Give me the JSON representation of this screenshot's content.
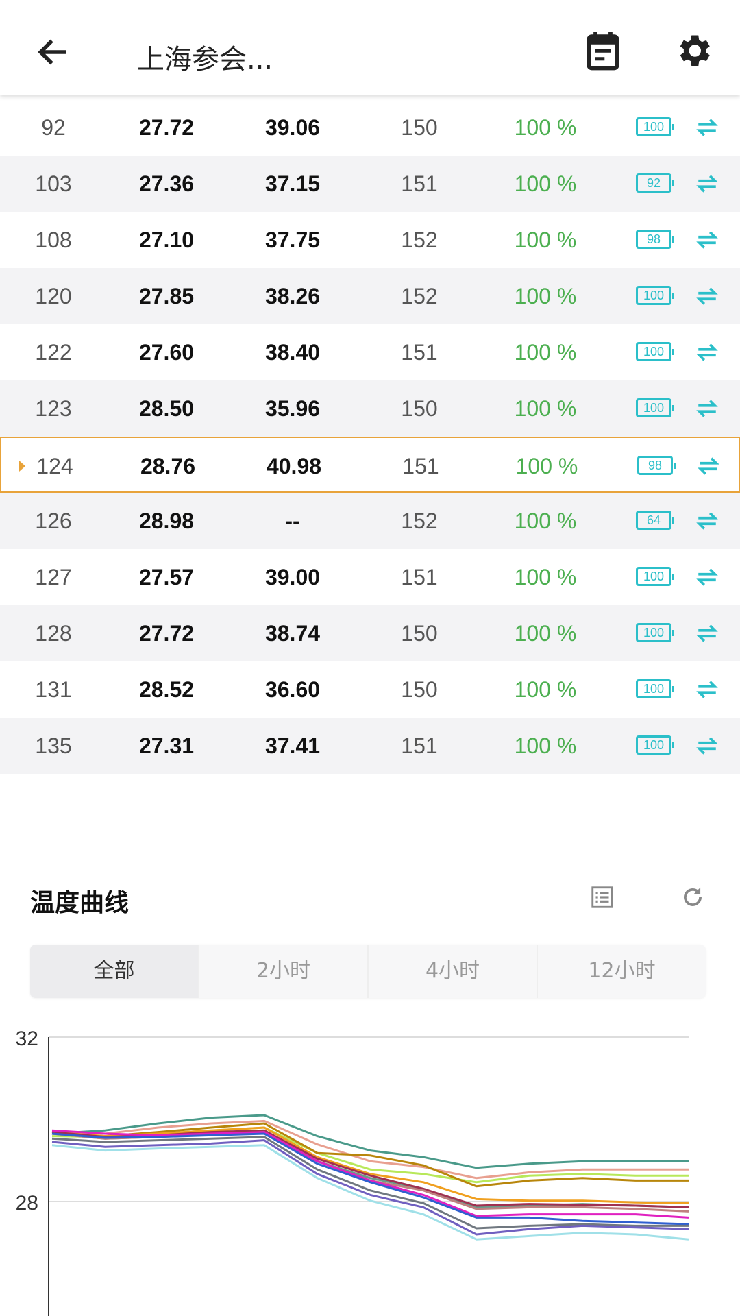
{
  "header": {
    "title": "上海参会...",
    "back_icon": "arrow-left-icon",
    "calendar_icon": "calendar-note-icon",
    "settings_icon": "gear-icon"
  },
  "colors": {
    "accent": "#2bbfc9",
    "green": "#4caf50",
    "selected_border": "#e8a33a"
  },
  "table": {
    "selected_id": "124",
    "rows": [
      {
        "id": "92",
        "temp": "27.72",
        "humidity": "39.06",
        "value": "150",
        "signal": "100 %",
        "battery": "100"
      },
      {
        "id": "103",
        "temp": "27.36",
        "humidity": "37.15",
        "value": "151",
        "signal": "100 %",
        "battery": "92"
      },
      {
        "id": "108",
        "temp": "27.10",
        "humidity": "37.75",
        "value": "152",
        "signal": "100 %",
        "battery": "98"
      },
      {
        "id": "120",
        "temp": "27.85",
        "humidity": "38.26",
        "value": "152",
        "signal": "100 %",
        "battery": "100"
      },
      {
        "id": "122",
        "temp": "27.60",
        "humidity": "38.40",
        "value": "151",
        "signal": "100 %",
        "battery": "100"
      },
      {
        "id": "123",
        "temp": "28.50",
        "humidity": "35.96",
        "value": "150",
        "signal": "100 %",
        "battery": "100"
      },
      {
        "id": "124",
        "temp": "28.76",
        "humidity": "40.98",
        "value": "151",
        "signal": "100 %",
        "battery": "98"
      },
      {
        "id": "126",
        "temp": "28.98",
        "humidity": "--",
        "value": "152",
        "signal": "100 %",
        "battery": "64"
      },
      {
        "id": "127",
        "temp": "27.57",
        "humidity": "39.00",
        "value": "151",
        "signal": "100 %",
        "battery": "100"
      },
      {
        "id": "128",
        "temp": "27.72",
        "humidity": "38.74",
        "value": "150",
        "signal": "100 %",
        "battery": "100"
      },
      {
        "id": "131",
        "temp": "28.52",
        "humidity": "36.60",
        "value": "150",
        "signal": "100 %",
        "battery": "100"
      },
      {
        "id": "135",
        "temp": "27.31",
        "humidity": "37.41",
        "value": "151",
        "signal": "100 %",
        "battery": "100"
      }
    ]
  },
  "curve": {
    "title": "温度曲线",
    "list_icon": "list-icon",
    "refresh_icon": "refresh-icon",
    "tabs": [
      "全部",
      "2小时",
      "4小时",
      "12小时"
    ],
    "active_tab": "全部"
  },
  "chart_data": {
    "type": "line",
    "title": "",
    "xlabel": "",
    "ylabel": "",
    "ylim": [
      24,
      32
    ],
    "yticks": [
      "32",
      "28"
    ],
    "grid": true,
    "x": [
      0,
      1,
      2,
      3,
      4,
      5,
      6,
      7,
      8,
      9,
      10,
      11,
      12
    ],
    "series": [
      {
        "color": "#4a9a8a",
        "values": [
          29.65,
          29.73,
          29.9,
          30.04,
          30.1,
          29.59,
          29.24,
          29.08,
          28.82,
          28.92,
          28.98,
          28.98,
          28.98
        ]
      },
      {
        "color": "#e8a090",
        "values": [
          29.69,
          29.65,
          29.8,
          29.9,
          29.96,
          29.39,
          28.98,
          28.84,
          28.57,
          28.71,
          28.78,
          28.78,
          28.78
        ]
      },
      {
        "color": "#b8e85a",
        "values": [
          29.59,
          29.57,
          29.65,
          29.73,
          29.8,
          29.18,
          28.78,
          28.67,
          28.47,
          28.63,
          28.67,
          28.63,
          28.63
        ]
      },
      {
        "color": "#b8860b",
        "values": [
          29.65,
          29.59,
          29.69,
          29.8,
          29.9,
          29.18,
          29.12,
          28.88,
          28.37,
          28.51,
          28.57,
          28.51,
          28.51
        ]
      },
      {
        "color": "#f0a020",
        "values": [
          29.69,
          29.59,
          29.65,
          29.73,
          29.8,
          29.08,
          28.67,
          28.47,
          28.06,
          28.02,
          28.02,
          27.98,
          27.96
        ]
      },
      {
        "color": "#6a9a8a",
        "values": [
          29.65,
          29.53,
          29.57,
          29.65,
          29.69,
          28.98,
          28.57,
          28.31,
          27.86,
          27.9,
          27.94,
          27.9,
          27.86
        ]
      },
      {
        "color": "#a03050",
        "values": [
          29.69,
          29.57,
          29.61,
          29.69,
          29.73,
          29.04,
          28.63,
          28.31,
          27.9,
          27.94,
          27.92,
          27.9,
          27.86
        ]
      },
      {
        "color": "#c08080",
        "values": [
          29.65,
          29.53,
          29.57,
          29.63,
          29.69,
          28.98,
          28.51,
          28.27,
          27.82,
          27.86,
          27.86,
          27.82,
          27.76
        ]
      },
      {
        "color": "#e020c0",
        "values": [
          29.73,
          29.65,
          29.61,
          29.65,
          29.69,
          28.98,
          28.51,
          28.16,
          27.65,
          27.69,
          27.69,
          27.69,
          27.61
        ]
      },
      {
        "color": "#3060d0",
        "values": [
          29.65,
          29.55,
          29.57,
          29.61,
          29.65,
          28.92,
          28.47,
          28.1,
          27.61,
          27.61,
          27.53,
          27.49,
          27.45
        ]
      },
      {
        "color": "#707880",
        "values": [
          29.53,
          29.45,
          29.49,
          29.53,
          29.57,
          28.78,
          28.27,
          27.96,
          27.35,
          27.41,
          27.45,
          27.41,
          27.41
        ]
      },
      {
        "color": "#7060c0",
        "values": [
          29.45,
          29.33,
          29.37,
          29.41,
          29.49,
          28.67,
          28.16,
          27.86,
          27.2,
          27.33,
          27.41,
          27.37,
          27.33
        ]
      },
      {
        "color": "#a0e0e8",
        "values": [
          29.37,
          29.24,
          29.29,
          29.33,
          29.37,
          28.57,
          28.02,
          27.69,
          27.08,
          27.16,
          27.24,
          27.2,
          27.08
        ]
      }
    ]
  }
}
